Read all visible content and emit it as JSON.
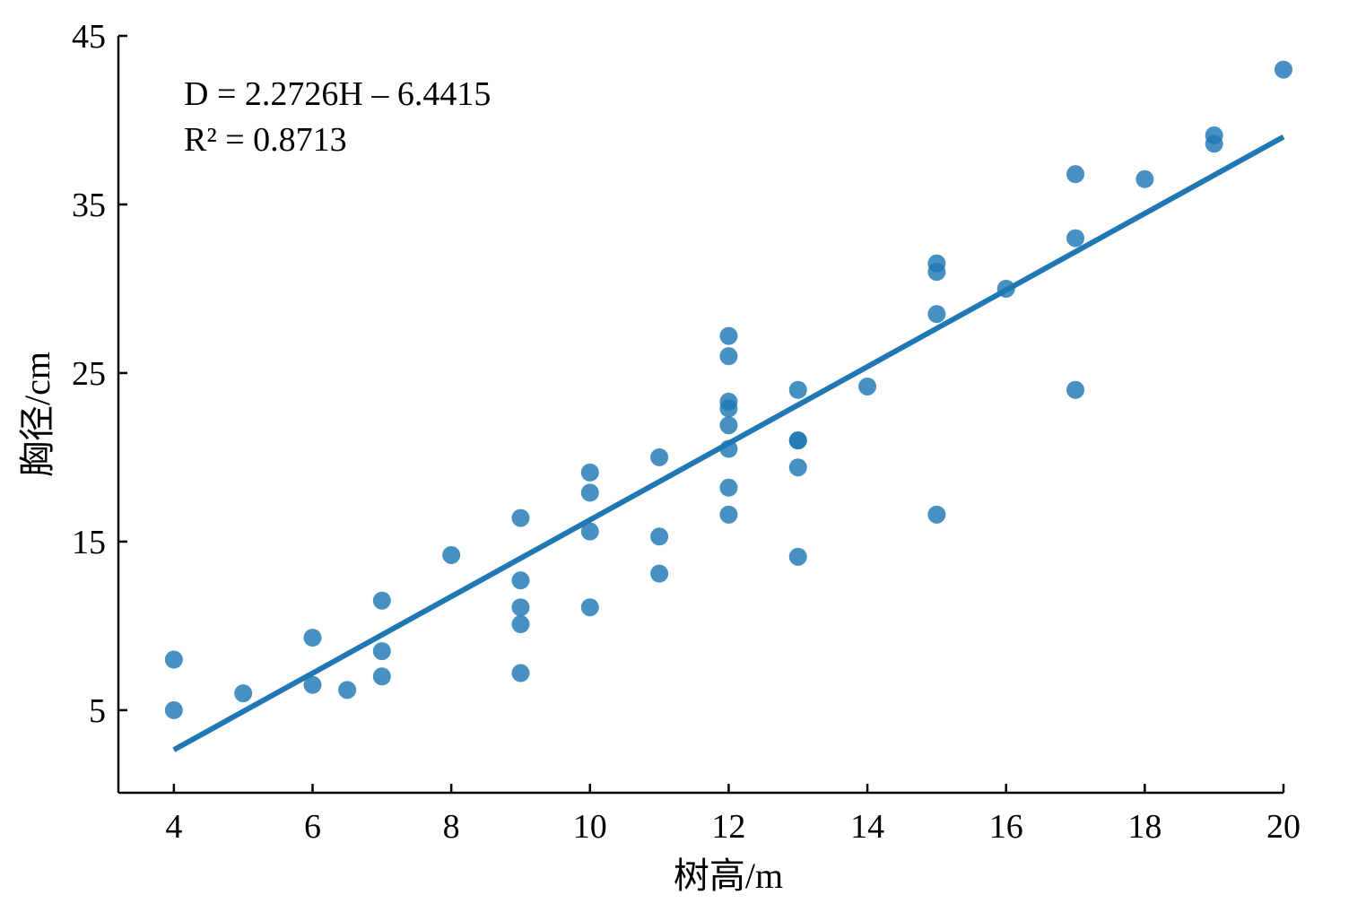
{
  "chart_data": {
    "type": "scatter",
    "xlabel": "树高/m",
    "ylabel": "胸径/cm",
    "xlim": [
      3.2,
      20
    ],
    "ylim": [
      0.1,
      45
    ],
    "xticks": [
      4,
      6,
      8,
      10,
      12,
      14,
      16,
      18,
      20
    ],
    "yticks": [
      5,
      15,
      25,
      35,
      45
    ],
    "grid": false,
    "legend": "none",
    "point_color": "#1f77b4",
    "line_color": "#1f77b4",
    "annotations": {
      "equation": "D = 2.2726H – 6.4415",
      "r2_label": "R² = 0.8713"
    },
    "fit": {
      "slope": 2.2726,
      "intercept": -6.4415,
      "x_range": [
        4,
        20
      ]
    },
    "points": [
      {
        "x": 4,
        "y": 8.0
      },
      {
        "x": 4,
        "y": 5.0
      },
      {
        "x": 5,
        "y": 6.0
      },
      {
        "x": 6,
        "y": 9.3
      },
      {
        "x": 6,
        "y": 6.5
      },
      {
        "x": 6.5,
        "y": 6.2
      },
      {
        "x": 7,
        "y": 11.5
      },
      {
        "x": 7,
        "y": 8.5
      },
      {
        "x": 7,
        "y": 7.0
      },
      {
        "x": 8,
        "y": 14.2
      },
      {
        "x": 9,
        "y": 16.4
      },
      {
        "x": 9,
        "y": 12.7
      },
      {
        "x": 9,
        "y": 11.1
      },
      {
        "x": 9,
        "y": 10.1
      },
      {
        "x": 9,
        "y": 7.2
      },
      {
        "x": 10,
        "y": 19.1
      },
      {
        "x": 10,
        "y": 17.9
      },
      {
        "x": 10,
        "y": 15.6
      },
      {
        "x": 10,
        "y": 11.1
      },
      {
        "x": 11,
        "y": 20.0
      },
      {
        "x": 11,
        "y": 15.3
      },
      {
        "x": 11,
        "y": 13.1
      },
      {
        "x": 12,
        "y": 27.2
      },
      {
        "x": 12,
        "y": 26.0
      },
      {
        "x": 12,
        "y": 23.3
      },
      {
        "x": 12,
        "y": 22.9
      },
      {
        "x": 12,
        "y": 21.9
      },
      {
        "x": 12,
        "y": 20.5
      },
      {
        "x": 12,
        "y": 18.2
      },
      {
        "x": 12,
        "y": 16.6
      },
      {
        "x": 13,
        "y": 24.0
      },
      {
        "x": 13,
        "y": 21.0
      },
      {
        "x": 13,
        "y": 21.0
      },
      {
        "x": 13,
        "y": 19.4
      },
      {
        "x": 13,
        "y": 14.1
      },
      {
        "x": 14,
        "y": 24.2
      },
      {
        "x": 15,
        "y": 31.5
      },
      {
        "x": 15,
        "y": 31.0
      },
      {
        "x": 15,
        "y": 28.5
      },
      {
        "x": 15,
        "y": 16.6
      },
      {
        "x": 16,
        "y": 30.0
      },
      {
        "x": 17,
        "y": 36.8
      },
      {
        "x": 17,
        "y": 33.0
      },
      {
        "x": 17,
        "y": 24.0
      },
      {
        "x": 18,
        "y": 36.5
      },
      {
        "x": 19,
        "y": 39.1
      },
      {
        "x": 19,
        "y": 38.6
      },
      {
        "x": 20,
        "y": 43.0
      }
    ]
  }
}
